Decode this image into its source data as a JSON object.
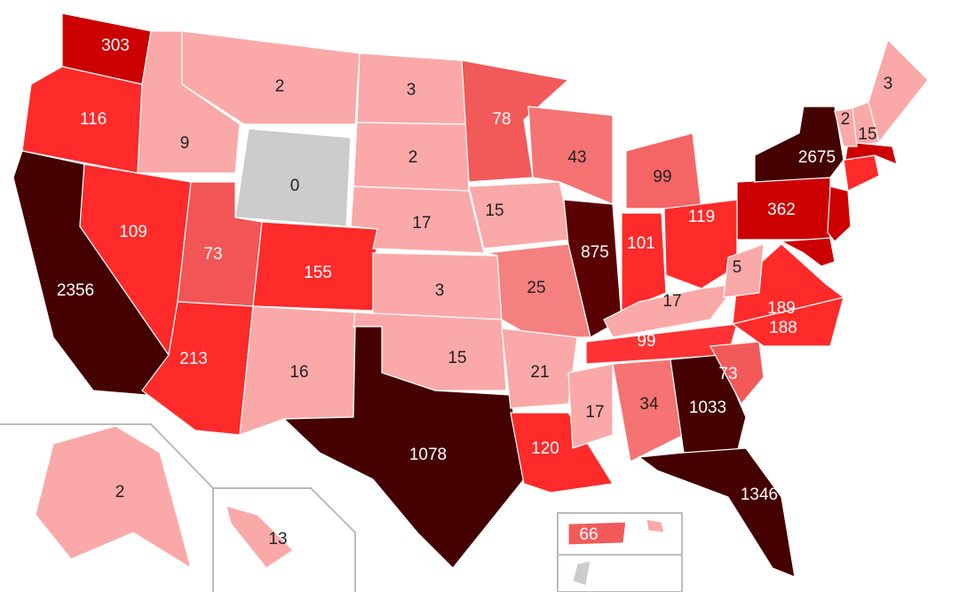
{
  "regions": [
    {
      "value": 303,
      "color": "#cc0000"
    },
    {
      "value": 116,
      "color": "#ff2a2a"
    },
    {
      "value": 2356,
      "color": "#450000"
    },
    {
      "value": 109,
      "color": "#ff2a2a"
    },
    {
      "value": 9,
      "color": "#fba8a8"
    },
    {
      "value": 2,
      "color": "#fba8a8"
    },
    {
      "value": 0,
      "color": "#cccccc"
    },
    {
      "value": 73,
      "color": "#f25555"
    },
    {
      "value": 155,
      "color": "#ff2a2a"
    },
    {
      "value": 213,
      "color": "#ff2a2a"
    },
    {
      "value": 16,
      "color": "#fba8a8"
    },
    {
      "value": 3,
      "color": "#fba8a8"
    },
    {
      "value": 2,
      "color": "#fba8a8"
    },
    {
      "value": 17,
      "color": "#fba8a8"
    },
    {
      "value": 3,
      "color": "#fba8a8"
    },
    {
      "value": 15,
      "color": "#fba8a8"
    },
    {
      "value": 1078,
      "color": "#450000"
    },
    {
      "value": 78,
      "color": "#f25a5a"
    },
    {
      "value": 15,
      "color": "#fba8a8"
    },
    {
      "value": 25,
      "color": "#f58080"
    },
    {
      "value": 21,
      "color": "#fba8a8"
    },
    {
      "value": 120,
      "color": "#ff2a2a"
    },
    {
      "value": 43,
      "color": "#f57373"
    },
    {
      "value": 875,
      "color": "#5a0000"
    },
    {
      "value": 99,
      "color": "#f56565"
    },
    {
      "value": 101,
      "color": "#ff2a2a"
    },
    {
      "value": 119,
      "color": "#ff2a2a"
    },
    {
      "value": 17,
      "color": "#fba8a8"
    },
    {
      "value": 99,
      "color": "#ff3333"
    },
    {
      "value": 17,
      "color": "#fba8a8"
    },
    {
      "value": 34,
      "color": "#f57373"
    },
    {
      "value": 1033,
      "color": "#450000"
    },
    {
      "value": 1346,
      "color": "#450000"
    },
    {
      "value": 73,
      "color": "#f25a5a"
    },
    {
      "value": 188,
      "color": "#ff2a2a"
    },
    {
      "value": 189,
      "color": "#ff2a2a"
    },
    {
      "value": 5,
      "color": "#fba8a8"
    },
    {
      "value": 362,
      "color": "#cc0000"
    },
    {
      "value": 2675,
      "color": "#450000"
    },
    {
      "value": 2,
      "color": "#fba8a8"
    },
    {
      "value": 15,
      "color": "#fba8a8"
    },
    {
      "value": 3,
      "color": "#fba8a8"
    },
    {
      "value": 2,
      "color": "#fba8a8"
    },
    {
      "value": 13,
      "color": "#fba8a8"
    },
    {
      "value": 66,
      "color": "#f25a5a"
    }
  ]
}
